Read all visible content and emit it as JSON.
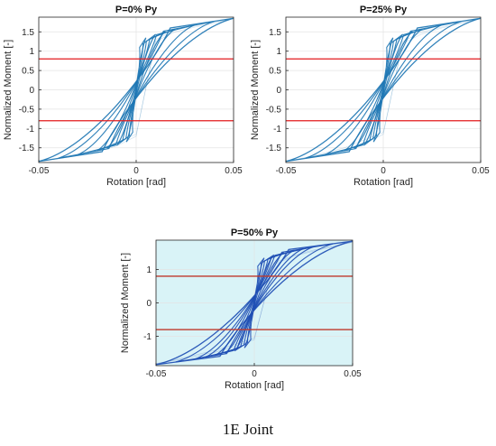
{
  "figure": {
    "caption": "1E Joint"
  },
  "chart_data": [
    {
      "type": "line",
      "title": "P=0% Py",
      "xlabel": "Rotation [rad]",
      "ylabel": "Normalized Moment [-]",
      "xlim": [
        -0.05,
        0.05
      ],
      "ylim": [
        -1.88,
        1.88
      ],
      "xticks": [
        -0.05,
        0,
        0.05
      ],
      "xtick_labels": [
        "-0.05",
        "0",
        "0.05"
      ],
      "yticks": [
        1.5,
        1,
        0.5,
        0,
        -0.5,
        -1,
        -1.5
      ],
      "ytick_labels": [
        "1.5",
        "1",
        "0.5",
        "0",
        "-0.5",
        "-1",
        "-1.5"
      ],
      "grid": true,
      "loop_amplitudes_rad": [
        0.005,
        0.01,
        0.015,
        0.02,
        0.03,
        0.04,
        0.05
      ],
      "series": [
        {
          "x": [
            -0.05,
            -0.04,
            -0.03,
            -0.02,
            -0.01,
            0,
            0.01,
            0.02,
            0.03,
            0.04,
            0.05
          ],
          "values": [
            -1.85,
            -1.78,
            -1.7,
            -1.6,
            -1.45,
            -1.2,
            1.3,
            1.55,
            1.65,
            1.75,
            1.85
          ]
        },
        {
          "x": [
            -0.05,
            -0.04,
            -0.03,
            -0.02,
            -0.01,
            0,
            0.01,
            0.02,
            0.03,
            0.04,
            0.05
          ],
          "values": [
            -1.85,
            -1.78,
            -1.68,
            -1.55,
            -1.35,
            -1.15,
            1.25,
            1.5,
            1.62,
            1.72,
            1.85
          ]
        }
      ],
      "reference_lines": [
        0.8,
        -0.8
      ],
      "style": {
        "loop_color": "#1f77b4",
        "reference_color": "#e31a1c",
        "fill": "none"
      }
    },
    {
      "type": "line",
      "title": "P=25% Py",
      "xlabel": "Rotation [rad]",
      "ylabel": "Normalized Moment [-]",
      "xlim": [
        -0.05,
        0.05
      ],
      "ylim": [
        -1.88,
        1.88
      ],
      "xticks": [
        -0.05,
        0,
        0.05
      ],
      "xtick_labels": [
        "-0.05",
        "0",
        "0.05"
      ],
      "yticks": [
        1.5,
        1,
        0.5,
        0,
        -0.5,
        -1,
        -1.5
      ],
      "ytick_labels": [
        "1.5",
        "1",
        "0.5",
        "0",
        "-0.5",
        "-1",
        "-1.5"
      ],
      "grid": true,
      "loop_amplitudes_rad": [
        0.005,
        0.01,
        0.015,
        0.02,
        0.03,
        0.04,
        0.05
      ],
      "series": [
        {
          "x": [
            -0.05,
            -0.04,
            -0.03,
            -0.02,
            -0.01,
            0,
            0.01,
            0.02,
            0.03,
            0.04,
            0.05
          ],
          "values": [
            -1.85,
            -1.76,
            -1.66,
            -1.55,
            -1.4,
            -1.15,
            1.25,
            1.5,
            1.62,
            1.74,
            1.85
          ]
        },
        {
          "x": [
            -0.05,
            -0.04,
            -0.03,
            -0.02,
            -0.01,
            0,
            0.01,
            0.02,
            0.03,
            0.04,
            0.05
          ],
          "values": [
            -1.85,
            -1.75,
            -1.63,
            -1.5,
            -1.3,
            -1.1,
            1.2,
            1.45,
            1.6,
            1.72,
            1.85
          ]
        }
      ],
      "reference_lines": [
        0.8,
        -0.8
      ],
      "style": {
        "loop_color": "#1f77b4",
        "reference_color": "#e31a1c",
        "fill": "none"
      }
    },
    {
      "type": "line",
      "title": "P=50% Py",
      "xlabel": "Rotation [rad]",
      "ylabel": "Normalized Moment [-]",
      "xlim": [
        -0.05,
        0.05
      ],
      "ylim": [
        -1.88,
        1.88
      ],
      "xticks": [
        -0.05,
        0,
        0.05
      ],
      "xtick_labels": [
        "-0.05",
        "0",
        "0.05"
      ],
      "yticks": [
        1,
        0,
        -1
      ],
      "ytick_labels": [
        "1",
        "0",
        "-1"
      ],
      "grid": true,
      "loop_amplitudes_rad": [
        0.005,
        0.01,
        0.015,
        0.02,
        0.025,
        0.03,
        0.04,
        0.05
      ],
      "series": [
        {
          "x": [
            -0.05,
            -0.04,
            -0.03,
            -0.02,
            -0.01,
            0,
            0.01,
            0.02,
            0.03,
            0.04,
            0.05
          ],
          "values": [
            -1.82,
            -1.72,
            -1.6,
            -1.48,
            -1.3,
            -1.1,
            1.2,
            1.42,
            1.58,
            1.7,
            1.82
          ]
        },
        {
          "x": [
            -0.05,
            -0.04,
            -0.03,
            -0.02,
            -0.01,
            0,
            0.01,
            0.02,
            0.03,
            0.04,
            0.05
          ],
          "values": [
            -1.82,
            -1.7,
            -1.56,
            -1.42,
            -1.25,
            -1.05,
            1.15,
            1.4,
            1.55,
            1.68,
            1.82
          ]
        }
      ],
      "reference_lines": [
        0.8,
        -0.8
      ],
      "style": {
        "loop_color": "#1f4fb4",
        "reference_color": "#c0392b",
        "fill": "#d9f3f7"
      }
    }
  ]
}
